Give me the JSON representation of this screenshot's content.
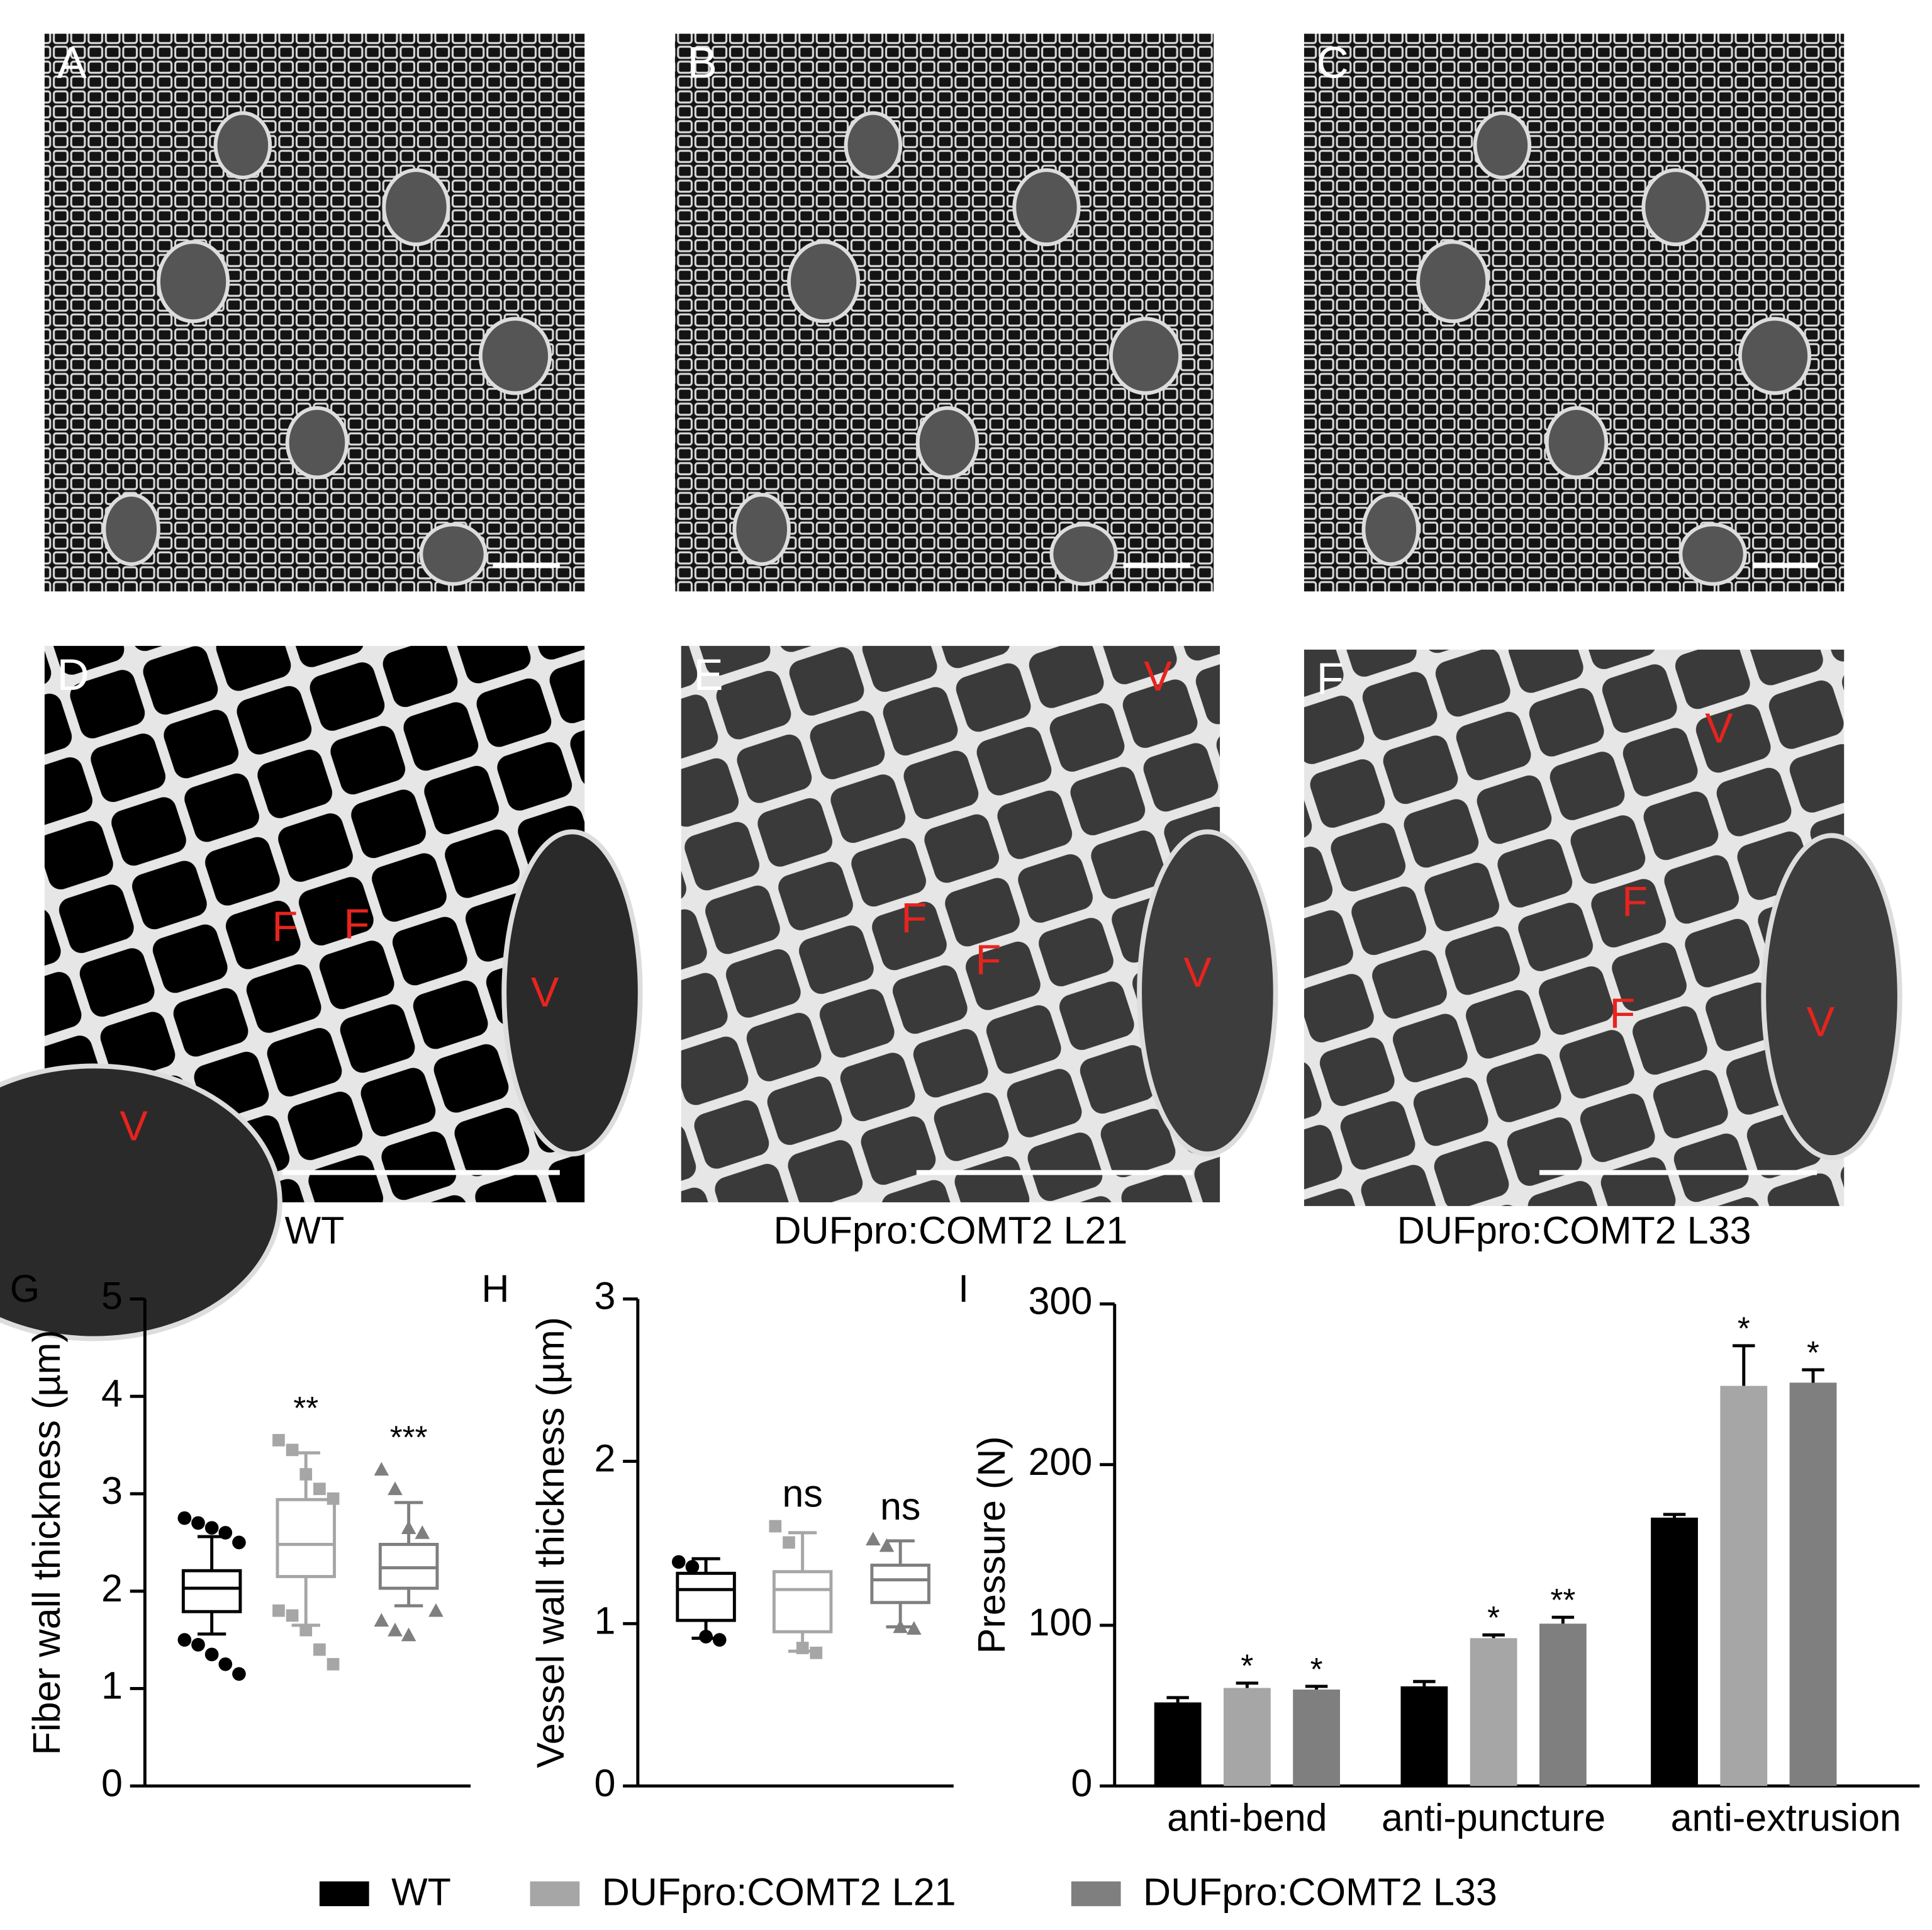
{
  "panels": [
    {
      "letter": "A"
    },
    {
      "letter": "B"
    },
    {
      "letter": "C"
    },
    {
      "letter": "D",
      "labels": [
        "F",
        "F",
        "V",
        "V"
      ],
      "caption": "WT"
    },
    {
      "letter": "E",
      "labels": [
        "V",
        "F",
        "F",
        "V"
      ],
      "caption": "DUFpro:COMT2  L21"
    },
    {
      "letter": "F",
      "labels": [
        "V",
        "F",
        "F",
        "V"
      ],
      "caption": "DUFpro:COMT2  L33"
    }
  ],
  "chart_data": [
    {
      "type": "box",
      "label": "G",
      "y_label": "Fiber wall thickness (µm)",
      "ylim": [
        0,
        5
      ],
      "yticks": [
        0,
        1,
        2,
        3,
        4,
        5
      ],
      "series": [
        {
          "name": "WT",
          "color": "#000000",
          "marker": "circle",
          "min": 1.56,
          "q1": 1.79,
          "median": 2.03,
          "q3": 2.21,
          "max": 2.56,
          "outliers": [
            2.75,
            2.7,
            2.65,
            2.6,
            2.5,
            1.5,
            1.45,
            1.35,
            1.25,
            1.15
          ]
        },
        {
          "name": "DUFpro:COMT2  L21",
          "color": "#a6a6a6",
          "marker": "square",
          "min": 1.65,
          "q1": 2.15,
          "median": 2.48,
          "q3": 2.94,
          "max": 3.42,
          "annotation": "**",
          "outliers": [
            3.55,
            3.45,
            3.2,
            3.05,
            2.95,
            1.8,
            1.75,
            1.6,
            1.4,
            1.25
          ]
        },
        {
          "name": "DUFpro:COMT2  L33",
          "color": "#7f7f7f",
          "marker": "triangle",
          "min": 1.85,
          "q1": 2.03,
          "median": 2.24,
          "q3": 2.48,
          "max": 2.91,
          "annotation": "***",
          "outliers": [
            3.25,
            3.05,
            2.65,
            2.6,
            1.8,
            1.7,
            1.6,
            1.55
          ]
        }
      ]
    },
    {
      "type": "box",
      "label": "H",
      "y_label": "Vessel wall thickness (µm)",
      "ylim": [
        0,
        3
      ],
      "yticks": [
        0,
        1,
        2,
        3
      ],
      "series": [
        {
          "name": "WT",
          "color": "#000000",
          "marker": "circle",
          "min": 0.91,
          "q1": 1.02,
          "median": 1.21,
          "q3": 1.31,
          "max": 1.4,
          "outliers": [
            1.38,
            1.35,
            0.92,
            0.9
          ]
        },
        {
          "name": "DUFpro:COMT2  L21",
          "color": "#a6a6a6",
          "marker": "square",
          "min": 0.83,
          "q1": 0.95,
          "median": 1.21,
          "q3": 1.32,
          "max": 1.56,
          "annotation": "ns",
          "outliers": [
            1.6,
            1.5,
            0.85,
            0.82
          ]
        },
        {
          "name": "DUFpro:COMT2  L33",
          "color": "#7f7f7f",
          "marker": "triangle",
          "min": 0.98,
          "q1": 1.13,
          "median": 1.27,
          "q3": 1.36,
          "max": 1.51,
          "annotation": "ns",
          "outliers": [
            1.52,
            1.48,
            0.98,
            0.97
          ]
        }
      ]
    },
    {
      "type": "bar",
      "label": "I",
      "y_label": "Pressure (N)",
      "ylim": [
        0,
        300
      ],
      "yticks": [
        0,
        100,
        200,
        300
      ],
      "categories": [
        "anti-bend",
        "anti-puncture",
        "anti-extrusion"
      ],
      "series": [
        {
          "name": "WT",
          "color": "#000000",
          "values": [
            52,
            62,
            167
          ],
          "errors": [
            3,
            3,
            2
          ]
        },
        {
          "name": "DUFpro:COMT2  L21",
          "color": "#a6a6a6",
          "values": [
            61,
            92,
            249
          ],
          "errors": [
            3,
            2,
            25
          ],
          "annotations": [
            "*",
            "*",
            "*"
          ]
        },
        {
          "name": "DUFpro:COMT2  L33",
          "color": "#7f7f7f",
          "values": [
            60,
            101,
            251
          ],
          "errors": [
            2,
            4,
            8
          ],
          "annotations": [
            "*",
            "**",
            "*"
          ]
        }
      ]
    }
  ]
}
